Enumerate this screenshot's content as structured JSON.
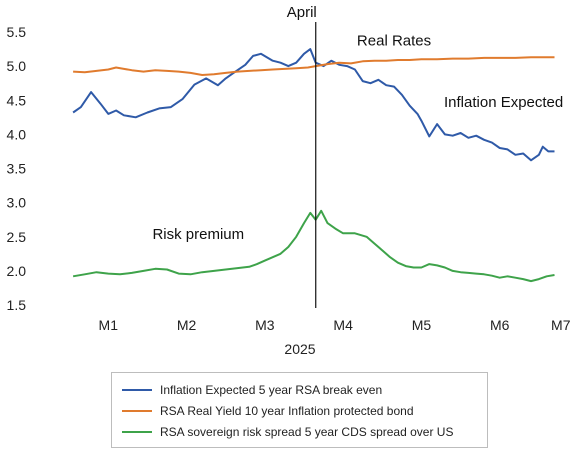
{
  "chart_data": {
    "type": "line",
    "xlabel": "2025",
    "x_ticks": [
      "M1",
      "M2",
      "M3",
      "M4",
      "M5",
      "M6",
      "M7"
    ],
    "ylim": [
      1.5,
      5.5
    ],
    "y_ticks": [
      "1.5",
      "2.0",
      "2.5",
      "3.0",
      "3.5",
      "4.0",
      "4.5",
      "5.0",
      "5.5"
    ],
    "grid": false,
    "legend_position": "bottom",
    "vline": {
      "x": 3.65,
      "label": "April"
    },
    "annotations": [
      {
        "text": "Real Rates",
        "x": 4.65,
        "y": 5.3
      },
      {
        "text": "Inflation Expected",
        "x": 6.05,
        "y": 4.4
      },
      {
        "text": "Risk premium",
        "x": 2.15,
        "y": 2.47
      }
    ],
    "series": [
      {
        "name": "Inflation Expected 5 year RSA break even",
        "color": "#2f5aa8",
        "points": [
          [
            0.55,
            4.32
          ],
          [
            0.65,
            4.4
          ],
          [
            0.78,
            4.62
          ],
          [
            0.9,
            4.45
          ],
          [
            1.0,
            4.3
          ],
          [
            1.1,
            4.35
          ],
          [
            1.2,
            4.28
          ],
          [
            1.35,
            4.25
          ],
          [
            1.5,
            4.32
          ],
          [
            1.65,
            4.38
          ],
          [
            1.8,
            4.4
          ],
          [
            1.95,
            4.52
          ],
          [
            2.1,
            4.73
          ],
          [
            2.25,
            4.82
          ],
          [
            2.4,
            4.72
          ],
          [
            2.5,
            4.82
          ],
          [
            2.6,
            4.9
          ],
          [
            2.75,
            5.02
          ],
          [
            2.85,
            5.15
          ],
          [
            2.95,
            5.18
          ],
          [
            3.1,
            5.08
          ],
          [
            3.2,
            5.05
          ],
          [
            3.3,
            5.0
          ],
          [
            3.4,
            5.05
          ],
          [
            3.5,
            5.18
          ],
          [
            3.58,
            5.25
          ],
          [
            3.65,
            5.05
          ],
          [
            3.75,
            5.0
          ],
          [
            3.85,
            5.08
          ],
          [
            3.95,
            5.02
          ],
          [
            4.05,
            5.0
          ],
          [
            4.15,
            4.95
          ],
          [
            4.25,
            4.78
          ],
          [
            4.35,
            4.75
          ],
          [
            4.45,
            4.8
          ],
          [
            4.55,
            4.72
          ],
          [
            4.65,
            4.7
          ],
          [
            4.75,
            4.58
          ],
          [
            4.85,
            4.42
          ],
          [
            4.95,
            4.3
          ],
          [
            5.0,
            4.2
          ],
          [
            5.1,
            3.97
          ],
          [
            5.2,
            4.15
          ],
          [
            5.3,
            4.0
          ],
          [
            5.4,
            3.98
          ],
          [
            5.5,
            4.02
          ],
          [
            5.6,
            3.95
          ],
          [
            5.7,
            3.98
          ],
          [
            5.8,
            3.92
          ],
          [
            5.9,
            3.88
          ],
          [
            6.0,
            3.8
          ],
          [
            6.1,
            3.78
          ],
          [
            6.2,
            3.7
          ],
          [
            6.3,
            3.72
          ],
          [
            6.4,
            3.62
          ],
          [
            6.5,
            3.7
          ],
          [
            6.55,
            3.82
          ],
          [
            6.62,
            3.75
          ],
          [
            6.7,
            3.75
          ]
        ]
      },
      {
        "name": "RSA Real Yield 10 year Inflation protected bond",
        "color": "#e07b2e",
        "points": [
          [
            0.55,
            4.92
          ],
          [
            0.7,
            4.91
          ],
          [
            0.85,
            4.93
          ],
          [
            1.0,
            4.95
          ],
          [
            1.1,
            4.98
          ],
          [
            1.2,
            4.96
          ],
          [
            1.3,
            4.94
          ],
          [
            1.45,
            4.92
          ],
          [
            1.6,
            4.94
          ],
          [
            1.75,
            4.93
          ],
          [
            1.9,
            4.92
          ],
          [
            2.05,
            4.9
          ],
          [
            2.2,
            4.87
          ],
          [
            2.35,
            4.88
          ],
          [
            2.5,
            4.9
          ],
          [
            2.65,
            4.92
          ],
          [
            2.8,
            4.93
          ],
          [
            2.95,
            4.94
          ],
          [
            3.1,
            4.95
          ],
          [
            3.25,
            4.96
          ],
          [
            3.4,
            4.97
          ],
          [
            3.55,
            4.98
          ],
          [
            3.65,
            5.0
          ],
          [
            3.8,
            5.03
          ],
          [
            3.95,
            5.05
          ],
          [
            4.1,
            5.04
          ],
          [
            4.25,
            5.07
          ],
          [
            4.4,
            5.08
          ],
          [
            4.55,
            5.08
          ],
          [
            4.7,
            5.09
          ],
          [
            4.85,
            5.09
          ],
          [
            5.0,
            5.1
          ],
          [
            5.2,
            5.1
          ],
          [
            5.4,
            5.11
          ],
          [
            5.6,
            5.11
          ],
          [
            5.8,
            5.12
          ],
          [
            6.0,
            5.12
          ],
          [
            6.2,
            5.12
          ],
          [
            6.4,
            5.13
          ],
          [
            6.6,
            5.13
          ],
          [
            6.7,
            5.13
          ]
        ]
      },
      {
        "name": "RSA sovereign risk spread 5 year CDS spread over US",
        "color": "#3ea34a",
        "points": [
          [
            0.55,
            1.92
          ],
          [
            0.7,
            1.95
          ],
          [
            0.85,
            1.98
          ],
          [
            1.0,
            1.96
          ],
          [
            1.15,
            1.95
          ],
          [
            1.3,
            1.97
          ],
          [
            1.45,
            2.0
          ],
          [
            1.6,
            2.03
          ],
          [
            1.75,
            2.02
          ],
          [
            1.9,
            1.96
          ],
          [
            2.05,
            1.95
          ],
          [
            2.2,
            1.98
          ],
          [
            2.35,
            2.0
          ],
          [
            2.5,
            2.02
          ],
          [
            2.65,
            2.04
          ],
          [
            2.8,
            2.06
          ],
          [
            2.9,
            2.1
          ],
          [
            3.0,
            2.15
          ],
          [
            3.1,
            2.2
          ],
          [
            3.2,
            2.25
          ],
          [
            3.3,
            2.35
          ],
          [
            3.4,
            2.5
          ],
          [
            3.5,
            2.7
          ],
          [
            3.58,
            2.85
          ],
          [
            3.65,
            2.75
          ],
          [
            3.72,
            2.88
          ],
          [
            3.8,
            2.7
          ],
          [
            3.9,
            2.62
          ],
          [
            4.0,
            2.55
          ],
          [
            4.15,
            2.55
          ],
          [
            4.3,
            2.5
          ],
          [
            4.4,
            2.4
          ],
          [
            4.5,
            2.3
          ],
          [
            4.6,
            2.2
          ],
          [
            4.7,
            2.12
          ],
          [
            4.8,
            2.07
          ],
          [
            4.9,
            2.05
          ],
          [
            5.0,
            2.05
          ],
          [
            5.1,
            2.1
          ],
          [
            5.2,
            2.08
          ],
          [
            5.3,
            2.05
          ],
          [
            5.4,
            2.0
          ],
          [
            5.5,
            1.98
          ],
          [
            5.6,
            1.97
          ],
          [
            5.7,
            1.96
          ],
          [
            5.8,
            1.95
          ],
          [
            5.9,
            1.93
          ],
          [
            6.0,
            1.9
          ],
          [
            6.1,
            1.92
          ],
          [
            6.2,
            1.9
          ],
          [
            6.3,
            1.88
          ],
          [
            6.4,
            1.85
          ],
          [
            6.5,
            1.88
          ],
          [
            6.6,
            1.92
          ],
          [
            6.7,
            1.94
          ]
        ]
      }
    ]
  }
}
